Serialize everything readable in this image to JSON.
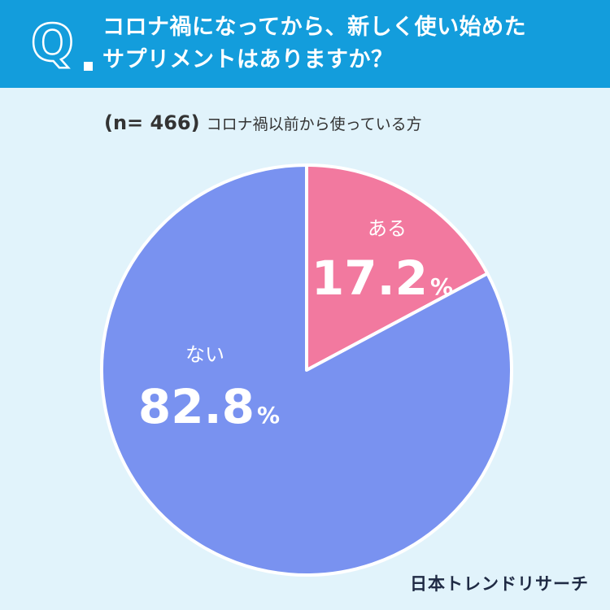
{
  "header": {
    "q_letter": "Q",
    "question_line1": "コロナ禍になってから、新しく使い始めた",
    "question_line2": "サプリメントはありますか？"
  },
  "subtitle": {
    "sample": "(n= 466)",
    "description": "コロナ禍以前から使っている方"
  },
  "brand": "日本トレンドリサーチ",
  "colors": {
    "header_bg": "#139ddc",
    "page_bg": "#e1f3fb",
    "yes": "#f2799f",
    "no": "#7992f0"
  },
  "chart_data": {
    "type": "pie",
    "slices": [
      {
        "label": "ある",
        "value": 17.2,
        "value_text": "17.2",
        "unit": "%",
        "color": "#f2799f"
      },
      {
        "label": "ない",
        "value": 82.8,
        "value_text": "82.8",
        "unit": "%",
        "color": "#7992f0"
      }
    ],
    "start_angle_deg": 0,
    "direction": "clockwise"
  }
}
